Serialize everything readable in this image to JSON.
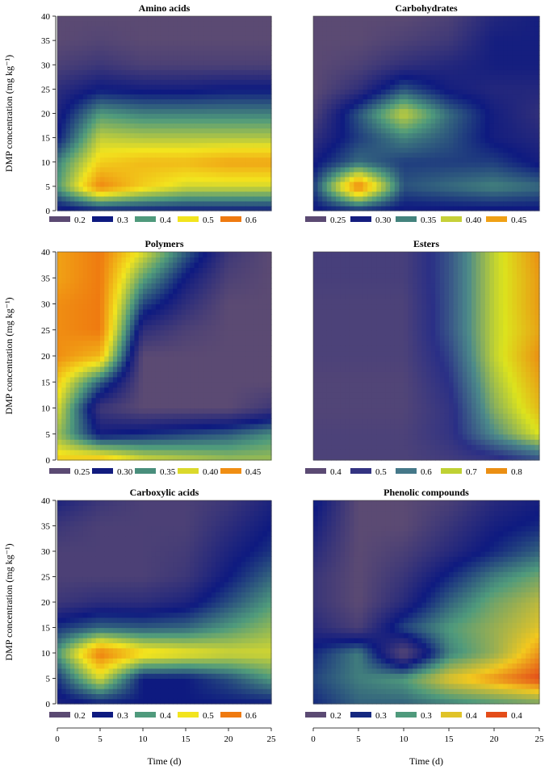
{
  "chart_data": [
    {
      "type": "heatmap",
      "title": "Amino acids",
      "xlabel": "",
      "ylabel": "DMP concentration (mg kg⁻¹)",
      "xlim": [
        0,
        25
      ],
      "ylim": [
        0,
        40
      ],
      "x": [
        0,
        5,
        10,
        15,
        20,
        25
      ],
      "y": [
        0,
        5,
        10,
        15,
        20,
        25,
        30,
        35,
        40
      ],
      "z": [
        [
          0.28,
          0.3,
          0.3,
          0.3,
          0.3,
          0.3
        ],
        [
          0.4,
          0.59,
          0.52,
          0.48,
          0.48,
          0.48
        ],
        [
          0.38,
          0.52,
          0.54,
          0.54,
          0.56,
          0.56
        ],
        [
          0.3,
          0.47,
          0.46,
          0.46,
          0.46,
          0.46
        ],
        [
          0.28,
          0.4,
          0.38,
          0.38,
          0.38,
          0.38
        ],
        [
          0.26,
          0.3,
          0.29,
          0.29,
          0.3,
          0.3
        ],
        [
          0.22,
          0.24,
          0.22,
          0.22,
          0.22,
          0.22
        ],
        [
          0.2,
          0.21,
          0.2,
          0.2,
          0.2,
          0.2
        ],
        [
          0.2,
          0.2,
          0.2,
          0.2,
          0.2,
          0.2
        ]
      ],
      "legend": {
        "labels": [
          "0.2",
          "0.3",
          "0.4",
          "0.5",
          "0.6"
        ],
        "values": [
          0.2,
          0.3,
          0.4,
          0.5,
          0.6
        ],
        "placement": "bottom"
      },
      "ticks_x": [
        "0",
        "5",
        "10",
        "15",
        "20",
        "25"
      ],
      "ticks_y": [
        "0",
        "5",
        "10",
        "15",
        "20",
        "25",
        "30",
        "35",
        "40"
      ],
      "show_xticks": false,
      "show_xlabel": false,
      "colors": [
        "#5b4a73",
        "#0e1a80",
        "#4f9a7c",
        "#f2e41e",
        "#ef7a10"
      ],
      "vmin": 0.2,
      "vmax": 0.6
    },
    {
      "type": "heatmap",
      "title": "Carbohydrates",
      "xlabel": "",
      "ylabel": "",
      "xlim": [
        0,
        25
      ],
      "ylim": [
        0,
        40
      ],
      "x": [
        0,
        5,
        10,
        15,
        20,
        25
      ],
      "y": [
        0,
        5,
        10,
        15,
        20,
        25,
        30,
        35,
        40
      ],
      "z": [
        [
          0.3,
          0.31,
          0.3,
          0.3,
          0.3,
          0.3
        ],
        [
          0.32,
          0.47,
          0.33,
          0.34,
          0.35,
          0.34
        ],
        [
          0.3,
          0.34,
          0.32,
          0.32,
          0.32,
          0.3
        ],
        [
          0.28,
          0.32,
          0.35,
          0.33,
          0.3,
          0.29
        ],
        [
          0.26,
          0.33,
          0.4,
          0.34,
          0.3,
          0.28
        ],
        [
          0.25,
          0.28,
          0.33,
          0.3,
          0.29,
          0.29
        ],
        [
          0.25,
          0.26,
          0.28,
          0.29,
          0.3,
          0.3
        ],
        [
          0.25,
          0.25,
          0.26,
          0.27,
          0.3,
          0.3
        ],
        [
          0.25,
          0.25,
          0.25,
          0.26,
          0.29,
          0.3
        ]
      ],
      "legend": {
        "labels": [
          "0.25",
          "0.30",
          "0.35",
          "0.40",
          "0.45"
        ],
        "values": [
          0.25,
          0.3,
          0.35,
          0.4,
          0.45
        ],
        "placement": "bottom"
      },
      "ticks_x": [
        "0",
        "5",
        "10",
        "15",
        "20",
        "25"
      ],
      "ticks_y": [],
      "show_xticks": false,
      "show_xlabel": false,
      "colors": [
        "#5b4a73",
        "#0e1a80",
        "#4f9a7c",
        "#f2e41e",
        "#ef7a10"
      ],
      "vmin": 0.25,
      "vmax": 0.47
    },
    {
      "type": "heatmap",
      "title": "Polymers",
      "xlabel": "",
      "ylabel": "DMP concentration (mg kg⁻¹)",
      "xlim": [
        0,
        25
      ],
      "ylim": [
        0,
        40
      ],
      "x": [
        0,
        5,
        10,
        15,
        20,
        25
      ],
      "y": [
        0,
        5,
        10,
        15,
        20,
        25,
        30,
        35,
        40
      ],
      "z": [
        [
          0.42,
          0.43,
          0.4,
          0.39,
          0.38,
          0.38
        ],
        [
          0.38,
          0.3,
          0.31,
          0.32,
          0.33,
          0.35
        ],
        [
          0.4,
          0.27,
          0.25,
          0.25,
          0.25,
          0.27
        ],
        [
          0.42,
          0.33,
          0.25,
          0.25,
          0.25,
          0.25
        ],
        [
          0.45,
          0.43,
          0.25,
          0.25,
          0.25,
          0.25
        ],
        [
          0.45,
          0.46,
          0.28,
          0.26,
          0.25,
          0.25
        ],
        [
          0.45,
          0.46,
          0.32,
          0.28,
          0.25,
          0.25
        ],
        [
          0.44,
          0.46,
          0.36,
          0.3,
          0.26,
          0.25
        ],
        [
          0.44,
          0.46,
          0.4,
          0.33,
          0.27,
          0.25
        ]
      ],
      "legend": {
        "labels": [
          "0.25",
          "0.30",
          "0.35",
          "0.40",
          "0.45"
        ],
        "values": [
          0.25,
          0.3,
          0.35,
          0.4,
          0.45
        ],
        "placement": "bottom"
      },
      "ticks_x": [
        "0",
        "5",
        "10",
        "15",
        "20",
        "25"
      ],
      "ticks_y": [
        "0",
        "5",
        "10",
        "15",
        "20",
        "25",
        "30",
        "35",
        "40"
      ],
      "show_xticks": false,
      "show_xlabel": false,
      "colors": [
        "#5b4a73",
        "#0e1a80",
        "#4f9a7c",
        "#f2e41e",
        "#ef7a10"
      ],
      "vmin": 0.25,
      "vmax": 0.46
    },
    {
      "type": "heatmap",
      "title": "Esters",
      "xlabel": "",
      "ylabel": "",
      "xlim": [
        0,
        25
      ],
      "ylim": [
        0,
        40
      ],
      "x": [
        0,
        5,
        10,
        15,
        20,
        25
      ],
      "y": [
        0,
        5,
        10,
        15,
        20,
        25,
        30,
        35,
        40
      ],
      "z": [
        [
          0.45,
          0.45,
          0.45,
          0.47,
          0.5,
          0.55
        ],
        [
          0.45,
          0.45,
          0.45,
          0.5,
          0.62,
          0.72
        ],
        [
          0.44,
          0.44,
          0.44,
          0.5,
          0.66,
          0.76
        ],
        [
          0.44,
          0.44,
          0.44,
          0.52,
          0.68,
          0.78
        ],
        [
          0.45,
          0.45,
          0.45,
          0.54,
          0.7,
          0.8
        ],
        [
          0.45,
          0.45,
          0.45,
          0.56,
          0.7,
          0.78
        ],
        [
          0.45,
          0.45,
          0.45,
          0.56,
          0.7,
          0.79
        ],
        [
          0.46,
          0.46,
          0.46,
          0.56,
          0.7,
          0.79
        ],
        [
          0.46,
          0.46,
          0.46,
          0.56,
          0.7,
          0.8
        ]
      ],
      "legend": {
        "labels": [
          "0.4",
          "0.5",
          "0.6",
          "0.7",
          "0.8"
        ],
        "values": [
          0.4,
          0.5,
          0.6,
          0.7,
          0.8
        ],
        "placement": "bottom"
      },
      "ticks_x": [
        "0",
        "5",
        "10",
        "15",
        "20",
        "25"
      ],
      "ticks_y": [],
      "show_xticks": false,
      "show_xlabel": false,
      "colors": [
        "#5b4a73",
        "#2a2f86",
        "#4c8a8a",
        "#dce31d",
        "#ef7a10"
      ],
      "vmin": 0.42,
      "vmax": 0.82
    },
    {
      "type": "heatmap",
      "title": "Carboxylic acids",
      "xlabel": "Time (d)",
      "ylabel": "DMP concentration (mg kg⁻¹)",
      "xlim": [
        0,
        25
      ],
      "ylim": [
        0,
        40
      ],
      "x": [
        0,
        5,
        10,
        15,
        20,
        25
      ],
      "y": [
        0,
        5,
        10,
        15,
        20,
        25,
        30,
        35,
        40
      ],
      "z": [
        [
          0.28,
          0.3,
          0.3,
          0.3,
          0.3,
          0.3
        ],
        [
          0.32,
          0.48,
          0.3,
          0.3,
          0.34,
          0.4
        ],
        [
          0.4,
          0.6,
          0.52,
          0.5,
          0.48,
          0.48
        ],
        [
          0.32,
          0.36,
          0.35,
          0.36,
          0.4,
          0.44
        ],
        [
          0.24,
          0.26,
          0.26,
          0.28,
          0.34,
          0.4
        ],
        [
          0.22,
          0.22,
          0.22,
          0.24,
          0.3,
          0.36
        ],
        [
          0.22,
          0.22,
          0.22,
          0.23,
          0.28,
          0.32
        ],
        [
          0.24,
          0.22,
          0.22,
          0.22,
          0.26,
          0.3
        ],
        [
          0.28,
          0.24,
          0.22,
          0.22,
          0.24,
          0.28
        ]
      ],
      "legend": {
        "labels": [
          "0.2",
          "0.3",
          "0.4",
          "0.5",
          "0.6"
        ],
        "values": [
          0.2,
          0.3,
          0.4,
          0.5,
          0.6
        ],
        "placement": "bottom"
      },
      "ticks_x": [
        "0",
        "5",
        "10",
        "15",
        "20",
        "25"
      ],
      "ticks_y": [
        "0",
        "5",
        "10",
        "15",
        "20",
        "25",
        "30",
        "35",
        "40"
      ],
      "show_xticks": true,
      "show_xlabel": true,
      "colors": [
        "#5b4a73",
        "#0e1a80",
        "#4f9a7c",
        "#f2e41e",
        "#ef7a10"
      ],
      "vmin": 0.2,
      "vmax": 0.6
    },
    {
      "type": "heatmap",
      "title": "Phenolic compounds",
      "xlabel": "Time (d)",
      "ylabel": "",
      "xlim": [
        0,
        25
      ],
      "ylim": [
        0,
        40
      ],
      "x": [
        0,
        5,
        10,
        15,
        20,
        25
      ],
      "y": [
        0,
        5,
        10,
        15,
        20,
        25,
        30,
        35,
        40
      ],
      "z": [
        [
          0.3,
          0.32,
          0.32,
          0.33,
          0.34,
          0.35
        ],
        [
          0.31,
          0.33,
          0.34,
          0.38,
          0.4,
          0.42
        ],
        [
          0.3,
          0.33,
          0.25,
          0.33,
          0.36,
          0.4
        ],
        [
          0.28,
          0.26,
          0.31,
          0.34,
          0.36,
          0.38
        ],
        [
          0.27,
          0.25,
          0.28,
          0.32,
          0.35,
          0.37
        ],
        [
          0.27,
          0.25,
          0.27,
          0.3,
          0.33,
          0.35
        ],
        [
          0.28,
          0.25,
          0.26,
          0.28,
          0.3,
          0.32
        ],
        [
          0.29,
          0.25,
          0.25,
          0.27,
          0.29,
          0.3
        ],
        [
          0.3,
          0.25,
          0.25,
          0.26,
          0.28,
          0.29
        ]
      ],
      "legend": {
        "labels": [
          "0.2",
          "0.3",
          "0.3",
          "0.4",
          "0.4"
        ],
        "values": [
          0.25,
          0.3,
          0.34,
          0.38,
          0.42
        ],
        "placement": "bottom"
      },
      "ticks_x": [
        "0",
        "5",
        "10",
        "15",
        "20",
        "25"
      ],
      "ticks_y": [],
      "show_xticks": true,
      "show_xlabel": true,
      "colors": [
        "#5b4a73",
        "#0e1a80",
        "#4f9a7c",
        "#f2c81e",
        "#e02818"
      ],
      "vmin": 0.25,
      "vmax": 0.43
    }
  ]
}
